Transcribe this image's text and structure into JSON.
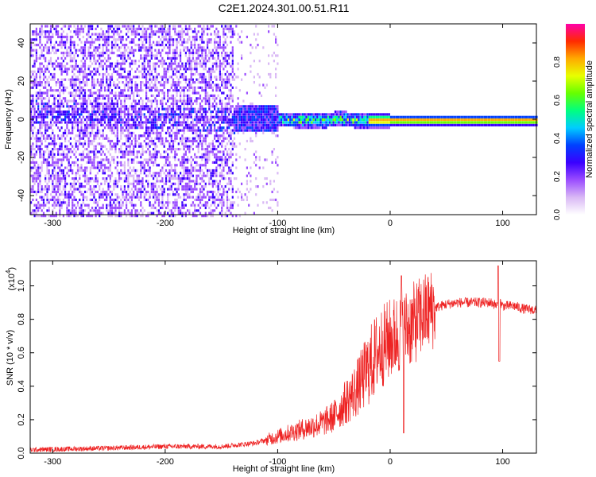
{
  "title": "C2E1.2024.301.00.51.R11",
  "chart_data": [
    {
      "type": "heatmap",
      "xlabel": "Height of straight line (km)",
      "ylabel": "Frequency (Hz)",
      "xlim": [
        -320,
        130
      ],
      "ylim": [
        -50,
        50
      ],
      "xticks": [
        -300,
        -200,
        -100,
        0,
        100
      ],
      "yticks": [
        -40,
        -20,
        0,
        20,
        40
      ],
      "colorbar": {
        "label": "Normalized spectral amplitude",
        "range": [
          0.0,
          1.0
        ],
        "ticks": [
          0.0,
          0.2,
          0.4,
          0.6,
          0.8
        ],
        "colormap": [
          "#ffffff",
          "#d9b8f5",
          "#9b4dff",
          "#3a00ff",
          "#0040ff",
          "#00ccff",
          "#00ff80",
          "#66ff00",
          "#e8ff00",
          "#ffaa00",
          "#ff2a00",
          "#ff00aa"
        ]
      },
      "ridge": {
        "x": [
          -320,
          -250,
          -200,
          -150,
          -120,
          -100,
          -80,
          -60,
          -45,
          -30,
          -20,
          0,
          20,
          50,
          80,
          100,
          130
        ],
        "y": [
          5,
          3,
          1,
          0,
          1,
          0.5,
          0,
          0,
          1,
          0,
          0,
          0,
          0,
          0,
          0,
          0,
          0
        ]
      }
    },
    {
      "type": "line",
      "xlabel": "Height of straight line (km)",
      "ylabel": "SNR (10 * v/v)",
      "yscale_note": "(x10",
      "yscale_exp": "4",
      "xlim": [
        -320,
        130
      ],
      "ylim": [
        0,
        1.15
      ],
      "xticks": [
        -300,
        -200,
        -100,
        0,
        100
      ],
      "yticks": [
        0.0,
        0.2,
        0.4,
        0.6,
        0.8,
        1.0
      ],
      "color": "#ee2222",
      "envelope": {
        "x": [
          -320,
          -250,
          -200,
          -150,
          -120,
          -100,
          -80,
          -60,
          -50,
          -40,
          -30,
          -20,
          -10,
          0,
          10,
          20,
          30,
          40,
          50,
          60,
          80,
          90,
          95,
          97,
          100,
          110,
          120,
          125,
          130
        ],
        "y": [
          0.02,
          0.03,
          0.04,
          0.04,
          0.06,
          0.1,
          0.14,
          0.18,
          0.22,
          0.3,
          0.38,
          0.5,
          0.62,
          0.68,
          0.72,
          0.77,
          0.83,
          0.87,
          0.89,
          0.9,
          0.9,
          0.9,
          0.88,
          0.91,
          0.88,
          0.88,
          0.86,
          0.86,
          0.85
        ]
      }
    }
  ]
}
